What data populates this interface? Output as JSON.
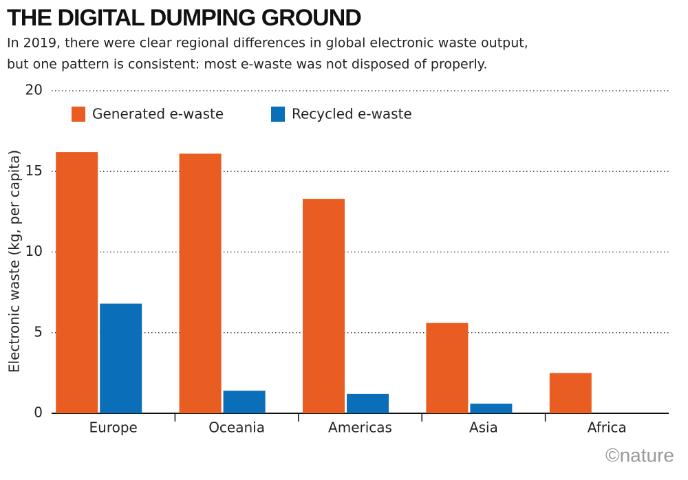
{
  "chart_data": {
    "type": "bar",
    "title": "THE DIGITAL DUMPING GROUND",
    "subtitle": [
      "In 2019, there were clear regional differences in global electronic waste output,",
      "but one pattern is consistent: most e-waste was not disposed of properly."
    ],
    "y_label": "Electronic waste (kg, per capita)",
    "categories": [
      "Europe",
      "Oceania",
      "Americas",
      "Asia",
      "Africa"
    ],
    "series": [
      {
        "name": "Generated e-waste",
        "color": "#e95d22",
        "values": [
          16.2,
          16.1,
          13.3,
          5.6,
          2.5
        ]
      },
      {
        "name": "Recycled e-waste",
        "color": "#0a6eb8",
        "values": [
          6.8,
          1.4,
          1.2,
          0.6,
          0
        ]
      }
    ],
    "ylim": [
      0,
      20
    ],
    "yticks": [
      0,
      5,
      10,
      15,
      20
    ],
    "grid": true,
    "credit": "©nature"
  }
}
